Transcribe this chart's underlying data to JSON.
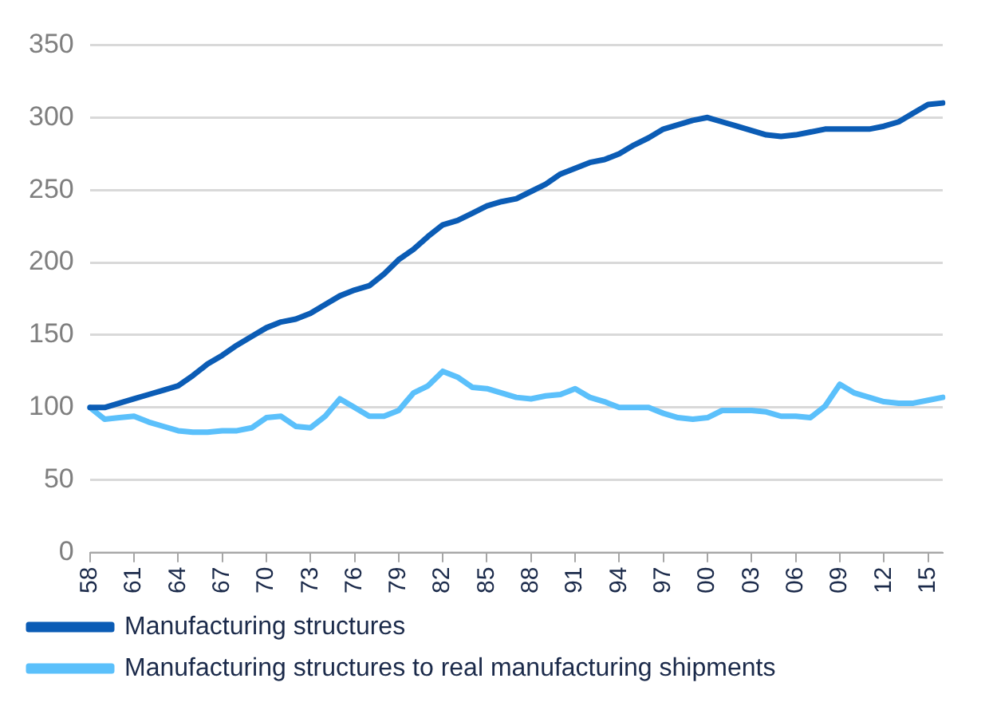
{
  "chart_data": {
    "type": "line",
    "categories": [
      "58",
      null,
      null,
      "61",
      null,
      null,
      "64",
      null,
      null,
      "67",
      null,
      null,
      "70",
      null,
      null,
      "73",
      null,
      null,
      "76",
      null,
      null,
      "79",
      null,
      null,
      "82",
      null,
      null,
      "85",
      null,
      null,
      "88",
      null,
      null,
      "91",
      null,
      null,
      "94",
      null,
      null,
      "97",
      null,
      null,
      "00",
      null,
      null,
      "03",
      null,
      null,
      "06",
      null,
      null,
      "09",
      null,
      null,
      "12",
      null,
      null,
      "15",
      null
    ],
    "series": [
      {
        "name": "Manufacturing structures",
        "color": "#0b5cb5",
        "values": [
          100,
          100,
          103,
          106,
          109,
          112,
          115,
          122,
          130,
          136,
          143,
          149,
          155,
          159,
          161,
          165,
          171,
          177,
          181,
          184,
          192,
          202,
          209,
          218,
          226,
          229,
          234,
          239,
          242,
          244,
          249,
          254,
          261,
          265,
          269,
          271,
          275,
          281,
          286,
          292,
          295,
          298,
          300,
          297,
          294,
          291,
          288,
          287,
          288,
          290,
          292,
          292,
          292,
          292,
          294,
          297,
          303,
          309,
          310
        ]
      },
      {
        "name": "Manufacturing structures to real manufacturing shipments",
        "color": "#5bc0fb",
        "values": [
          100,
          92,
          93,
          94,
          90,
          87,
          84,
          83,
          83,
          84,
          84,
          86,
          93,
          94,
          87,
          86,
          94,
          106,
          100,
          94,
          94,
          98,
          110,
          115,
          125,
          121,
          114,
          113,
          110,
          107,
          106,
          108,
          109,
          113,
          107,
          104,
          100,
          100,
          100,
          96,
          93,
          92,
          93,
          98,
          98,
          98,
          97,
          94,
          94,
          93,
          101,
          116,
          110,
          107,
          104,
          103,
          103,
          105,
          107
        ]
      }
    ],
    "ylim": [
      0,
      350
    ],
    "yticks": [
      0,
      50,
      100,
      150,
      200,
      250,
      300,
      350
    ],
    "grid": "y",
    "legend": "bottom",
    "marker": "none",
    "line_style": "solid"
  }
}
